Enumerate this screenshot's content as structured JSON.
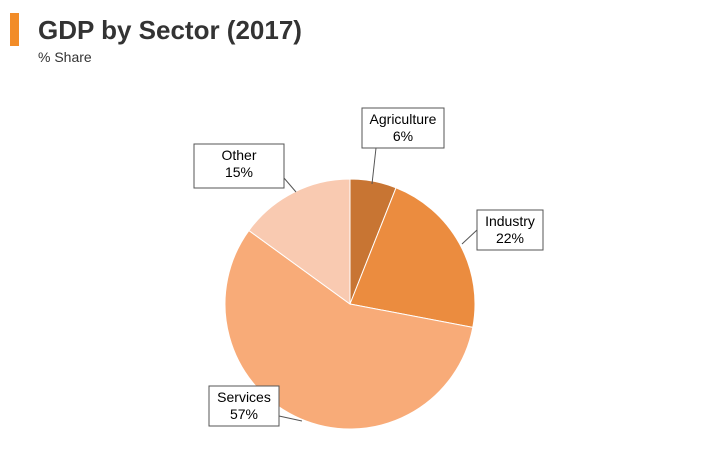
{
  "header": {
    "title": "GDP by Sector (2017)",
    "subtitle": "% Share",
    "accent_color": "#f28c28"
  },
  "chart_data": {
    "type": "pie",
    "title": "GDP by Sector (2017)",
    "subtitle": "% Share",
    "unit": "%",
    "start_angle_deg": 0,
    "direction": "clockwise",
    "slices": [
      {
        "label": "Agriculture",
        "value": 6,
        "value_label": "6%",
        "color": "#c87533"
      },
      {
        "label": "Industry",
        "value": 22,
        "value_label": "22%",
        "color": "#eb8c3f"
      },
      {
        "label": "Services",
        "value": 57,
        "value_label": "57%",
        "color": "#f8ab78"
      },
      {
        "label": "Other",
        "value": 15,
        "value_label": "15%",
        "color": "#f9cab1"
      }
    ]
  }
}
